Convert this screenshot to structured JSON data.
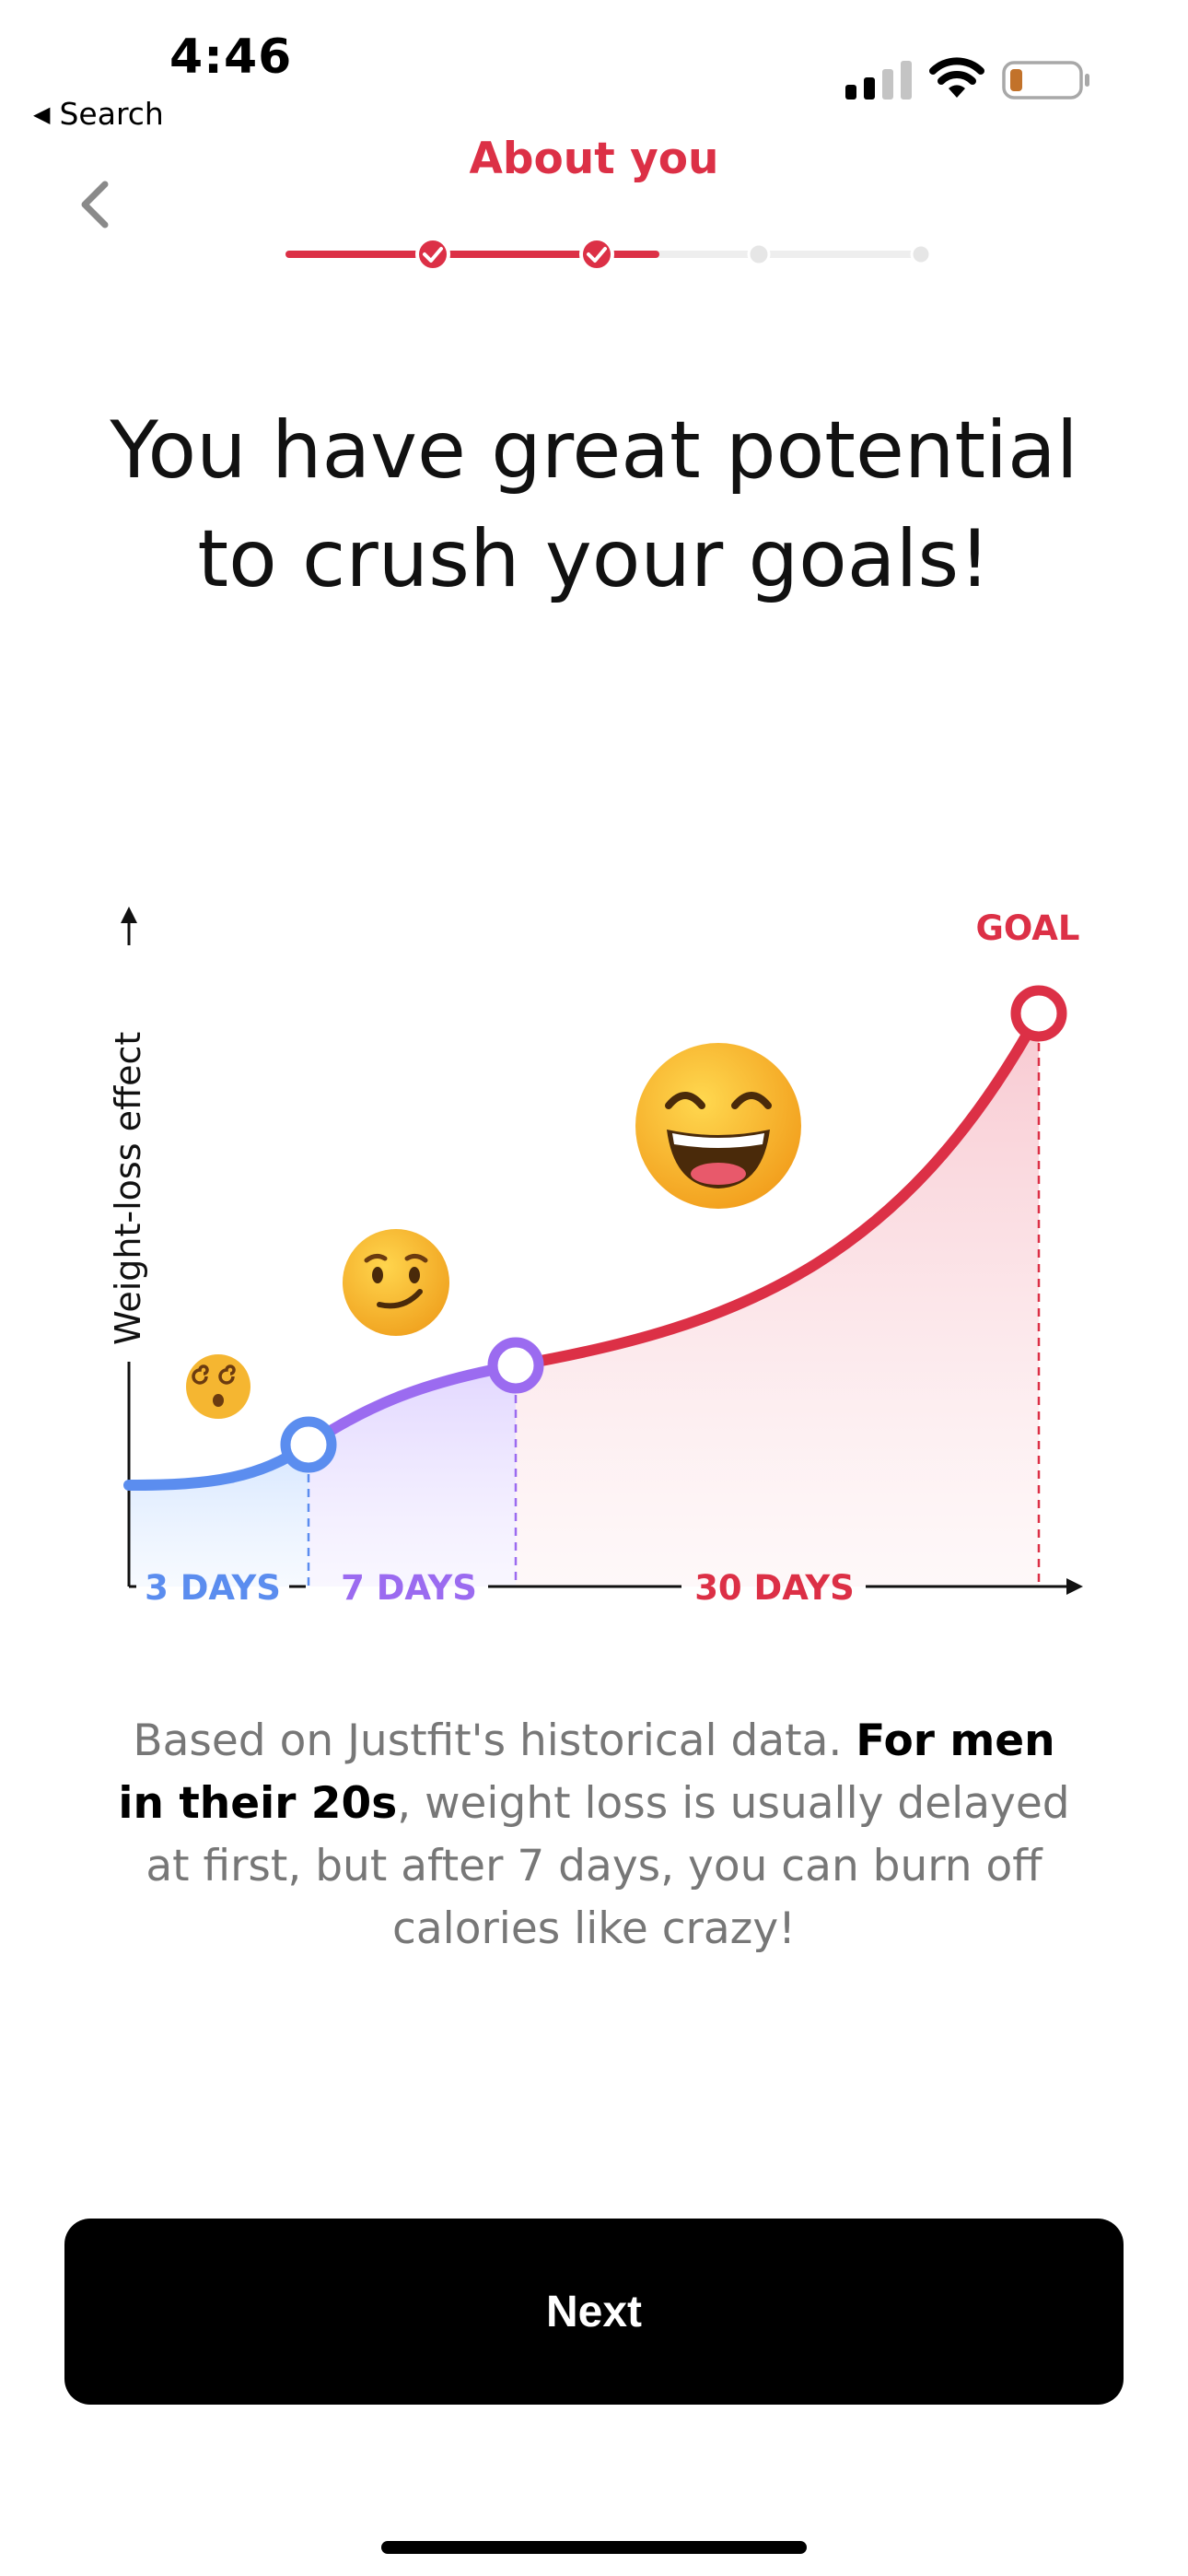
{
  "status_bar": {
    "time": "4:46",
    "back_label": "Search",
    "signal_icon": "cellular-signal-icon",
    "wifi_icon": "wifi-icon",
    "battery_icon": "battery-low-icon"
  },
  "header": {
    "title": "About you",
    "back_icon": "chevron-left-icon"
  },
  "progress": {
    "total_steps": 4,
    "completed_steps": 2,
    "current_fraction": 0.58,
    "accent": "#dc3046",
    "track": "#eeeeee"
  },
  "headline": {
    "line1": "You have great potential",
    "line2": "to crush your goals!"
  },
  "chart_data": {
    "type": "line",
    "ylabel": "Weight-loss effect",
    "xlabel": "",
    "goal_label": "GOAL",
    "segments": [
      {
        "label": "3 DAYS",
        "color": "#5b8def"
      },
      {
        "label": "7 DAYS",
        "color": "#9b6bf0"
      },
      {
        "label": "30 DAYS",
        "color": "#dc3046"
      }
    ],
    "emojis": [
      "dizzy-face-icon",
      "smirking-face-icon",
      "grinning-squinting-face-icon"
    ]
  },
  "description": {
    "part1": "Based on Justfit's historical data. ",
    "bold": "For men in their 20s",
    "part2": ", weight loss is usually delayed at first, but after 7 days, you can burn off calories like crazy!"
  },
  "footer": {
    "next_label": "Next"
  }
}
